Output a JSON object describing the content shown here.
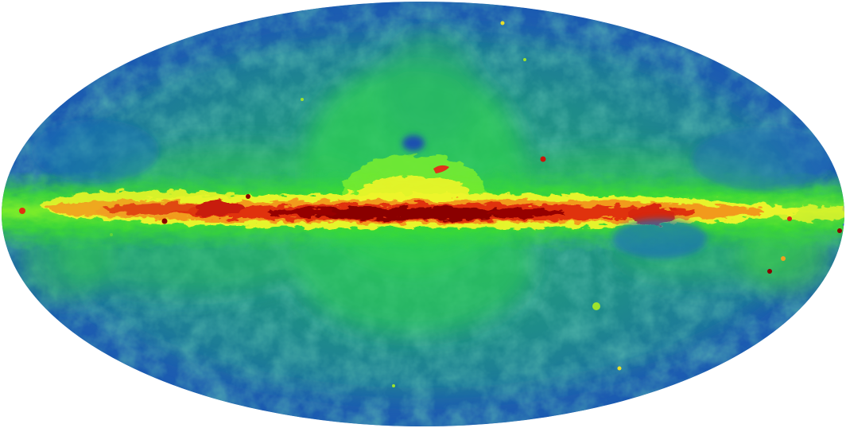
{
  "image": {
    "subject": "all-sky-mollweide-map",
    "projection": "mollweide",
    "background": "#ffffff",
    "colormap": [
      "#1a56b0",
      "#1f76b8",
      "#1fa07a",
      "#22c74a",
      "#3fe22a",
      "#9af02a",
      "#f2f52a",
      "#f7b21f",
      "#ef5a18",
      "#d81e0e",
      "#8c0000"
    ]
  }
}
